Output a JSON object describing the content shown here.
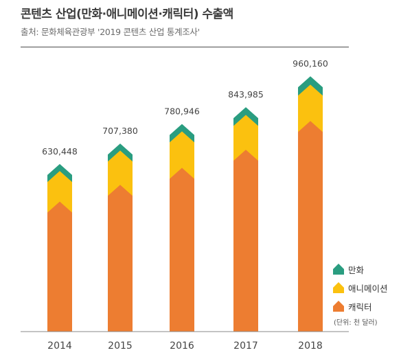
{
  "header": {
    "title": "콘텐츠 산업(만화·애니메이션·캐릭터) 수출액",
    "source": "출처: 문화체육관광부 '2019 콘텐츠 산업 통계조사'"
  },
  "chart_data": {
    "type": "bar",
    "stacked": true,
    "title": "콘텐츠 산업(만화·애니메이션·캐릭터) 수출액",
    "categories": [
      "2014",
      "2015",
      "2016",
      "2017",
      "2018"
    ],
    "totals": [
      630448,
      707380,
      780946,
      843985,
      960160
    ],
    "total_labels": [
      "630,448",
      "707,380",
      "780,946",
      "843,985",
      "960,160"
    ],
    "series": [
      {
        "name": "캐릭터",
        "color": "#ed7d31",
        "values": [
          489000,
          552000,
          616000,
          684000,
          792000
        ]
      },
      {
        "name": "애니메이션",
        "color": "#fbc10f",
        "values": [
          115000,
          129000,
          137000,
          131000,
          137000
        ]
      },
      {
        "name": "만화",
        "color": "#2a9d80",
        "values": [
          26448,
          26380,
          27946,
          28985,
          31160
        ]
      }
    ],
    "ylim": [
      0,
      1020000
    ],
    "unit": "(단위: 천 달러)",
    "legend_position": "bottom-right"
  }
}
